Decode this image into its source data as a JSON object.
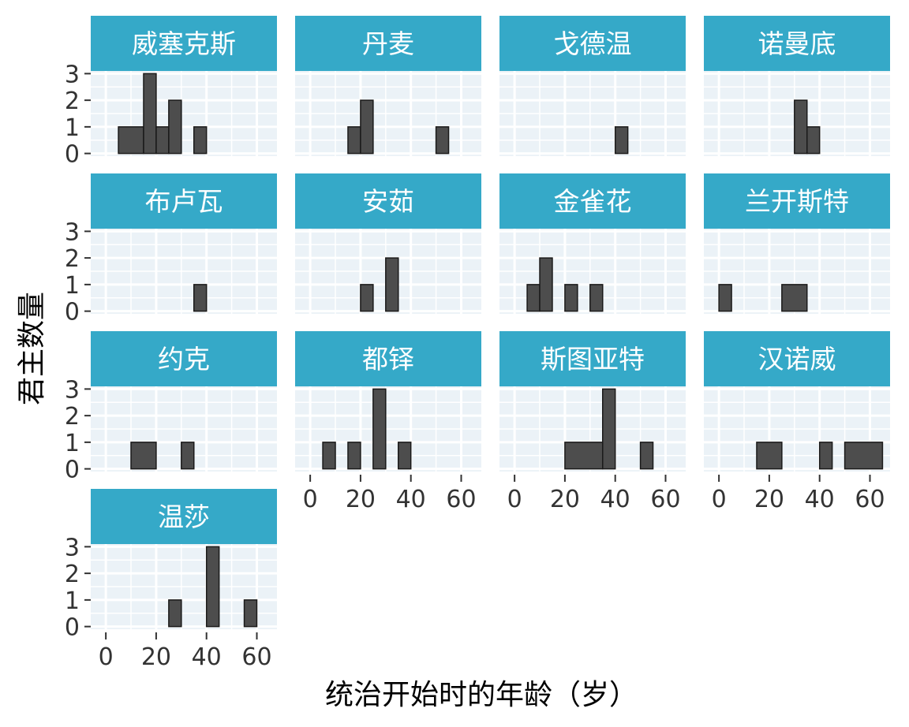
{
  "chart_data": {
    "type": "histogram",
    "layout": "facet-grid",
    "xlabel": "统治开始时的年龄（岁）",
    "ylabel": "君主数量",
    "x_ticks": [
      0,
      20,
      40,
      60
    ],
    "y_ticks": [
      0,
      1,
      2,
      3
    ],
    "xlim": [
      -6,
      68
    ],
    "ylim": [
      -0.1,
      3.1
    ],
    "bin_width": 5,
    "colors": {
      "strip_fill": "#35a9c8",
      "strip_text": "#ffffff",
      "panel_bg": "#ebf2f7",
      "grid": "#ffffff",
      "bar_fill": "#4d4d4d",
      "bar_stroke": "#1a1a1a",
      "tick_text": "#333333"
    },
    "panels": [
      {
        "name": "威塞克斯",
        "bins": [
          {
            "x0": 5,
            "x1": 15,
            "count": 1
          },
          {
            "x0": 15,
            "x1": 20,
            "count": 3
          },
          {
            "x0": 20,
            "x1": 25,
            "count": 1
          },
          {
            "x0": 25,
            "x1": 30,
            "count": 2
          },
          {
            "x0": 35,
            "x1": 40,
            "count": 1
          }
        ]
      },
      {
        "name": "丹麦",
        "bins": [
          {
            "x0": 15,
            "x1": 20,
            "count": 1
          },
          {
            "x0": 20,
            "x1": 25,
            "count": 2
          },
          {
            "x0": 50,
            "x1": 55,
            "count": 1
          }
        ]
      },
      {
        "name": "戈德温",
        "bins": [
          {
            "x0": 40,
            "x1": 45,
            "count": 1
          }
        ]
      },
      {
        "name": "诺曼底",
        "bins": [
          {
            "x0": 30,
            "x1": 35,
            "count": 2
          },
          {
            "x0": 35,
            "x1": 40,
            "count": 1
          }
        ]
      },
      {
        "name": "布卢瓦",
        "bins": [
          {
            "x0": 35,
            "x1": 40,
            "count": 1
          }
        ]
      },
      {
        "name": "安茹",
        "bins": [
          {
            "x0": 20,
            "x1": 25,
            "count": 1
          },
          {
            "x0": 30,
            "x1": 35,
            "count": 2
          }
        ]
      },
      {
        "name": "金雀花",
        "bins": [
          {
            "x0": 5,
            "x1": 10,
            "count": 1
          },
          {
            "x0": 10,
            "x1": 15,
            "count": 2
          },
          {
            "x0": 20,
            "x1": 25,
            "count": 1
          },
          {
            "x0": 30,
            "x1": 35,
            "count": 1
          }
        ]
      },
      {
        "name": "兰开斯特",
        "bins": [
          {
            "x0": 0,
            "x1": 5,
            "count": 1
          },
          {
            "x0": 25,
            "x1": 35,
            "count": 1
          }
        ]
      },
      {
        "name": "约克",
        "bins": [
          {
            "x0": 10,
            "x1": 20,
            "count": 1
          },
          {
            "x0": 30,
            "x1": 35,
            "count": 1
          }
        ]
      },
      {
        "name": "都铎",
        "bins": [
          {
            "x0": 5,
            "x1": 10,
            "count": 1
          },
          {
            "x0": 15,
            "x1": 20,
            "count": 1
          },
          {
            "x0": 25,
            "x1": 30,
            "count": 3
          },
          {
            "x0": 35,
            "x1": 40,
            "count": 1
          }
        ]
      },
      {
        "name": "斯图亚特",
        "bins": [
          {
            "x0": 20,
            "x1": 35,
            "count": 1
          },
          {
            "x0": 35,
            "x1": 40,
            "count": 3
          },
          {
            "x0": 50,
            "x1": 55,
            "count": 1
          }
        ]
      },
      {
        "name": "汉诺威",
        "bins": [
          {
            "x0": 15,
            "x1": 25,
            "count": 1
          },
          {
            "x0": 40,
            "x1": 45,
            "count": 1
          },
          {
            "x0": 50,
            "x1": 65,
            "count": 1
          }
        ]
      },
      {
        "name": "温莎",
        "bins": [
          {
            "x0": 25,
            "x1": 30,
            "count": 1
          },
          {
            "x0": 40,
            "x1": 45,
            "count": 3
          },
          {
            "x0": 55,
            "x1": 60,
            "count": 1
          }
        ]
      }
    ]
  }
}
